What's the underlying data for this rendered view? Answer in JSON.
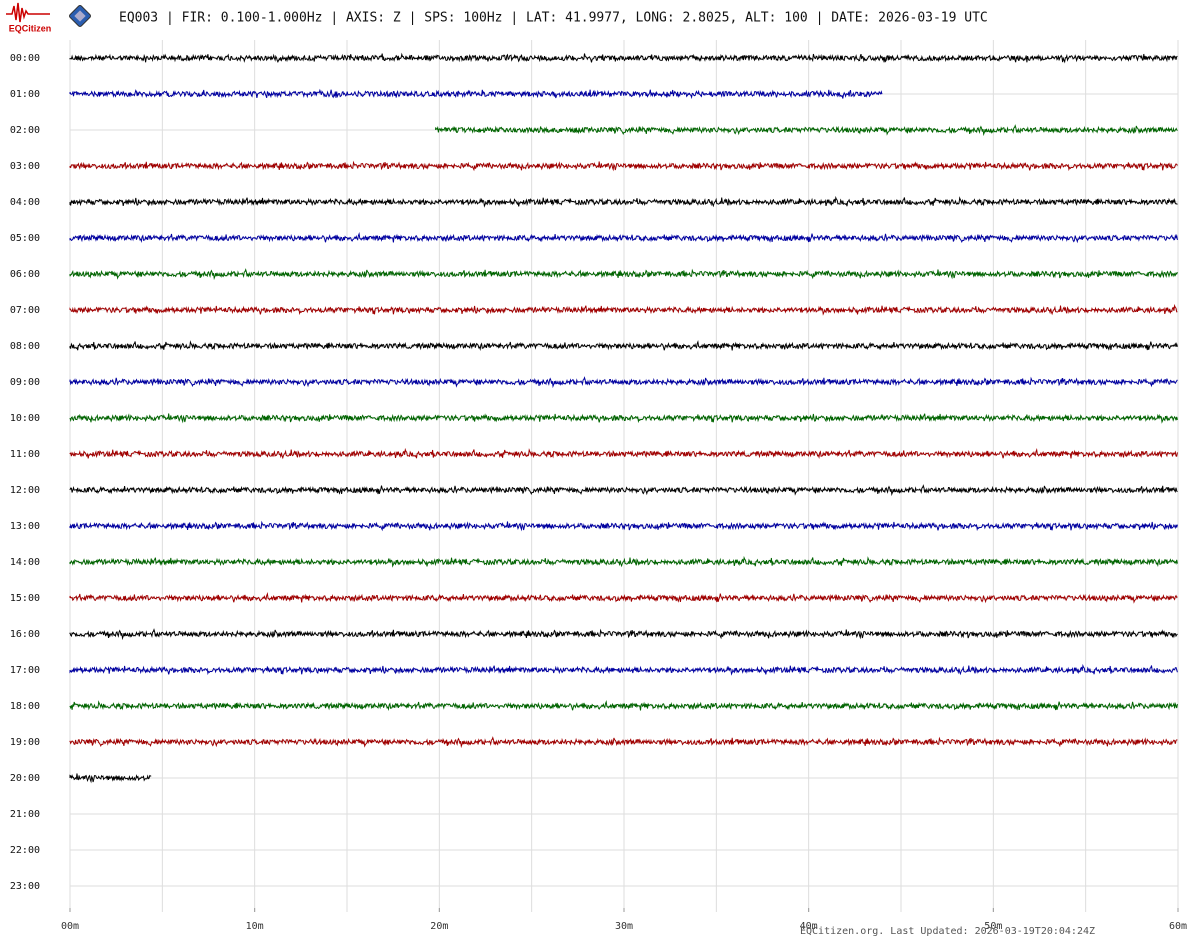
{
  "chart_data": {
    "type": "helicorder",
    "logo_text": "EQCitizen",
    "title": "EQ003 | FIR: 0.100-1.000Hz | AXIS: Z | SPS: 100Hz | LAT: 41.9977, LONG: 2.8025, ALT: 100 | DATE: 2026-03-19 UTC",
    "footer": "EQCitizen.org. Last Updated: 2026-03-19T20:04:24Z",
    "categories": [
      "00:00",
      "01:00",
      "02:00",
      "03:00",
      "04:00",
      "05:00",
      "06:00",
      "07:00",
      "08:00",
      "09:00",
      "10:00",
      "11:00",
      "12:00",
      "13:00",
      "14:00",
      "15:00",
      "16:00",
      "17:00",
      "18:00",
      "19:00",
      "20:00",
      "21:00",
      "22:00",
      "23:00"
    ],
    "trace_start": [
      0,
      0,
      19.8,
      0,
      0,
      0,
      0,
      0,
      0,
      0,
      0,
      0,
      0,
      0,
      0,
      0,
      0,
      0,
      0,
      0,
      0,
      null,
      null,
      null
    ],
    "trace_end": [
      60,
      44,
      60,
      60,
      60,
      60,
      60,
      60,
      60,
      60,
      60,
      60,
      60,
      60,
      60,
      60,
      60,
      60,
      60,
      60,
      4.4,
      null,
      null,
      null
    ],
    "colors": [
      "#000000",
      "#0000a0",
      "#006400",
      "#a00000"
    ],
    "xlim": [
      0,
      60
    ],
    "xticks": [
      {
        "value": 0,
        "label": "00m"
      },
      {
        "value": 10,
        "label": "10m"
      },
      {
        "value": 20,
        "label": "20m"
      },
      {
        "value": 30,
        "label": "30m"
      },
      {
        "value": 40,
        "label": "40m"
      },
      {
        "value": 50,
        "label": "50m"
      },
      {
        "value": 60,
        "label": "60m"
      }
    ],
    "xgrid": [
      0,
      5,
      10,
      15,
      20,
      25,
      30,
      35,
      40,
      45,
      50,
      55,
      60
    ],
    "grid": true
  }
}
